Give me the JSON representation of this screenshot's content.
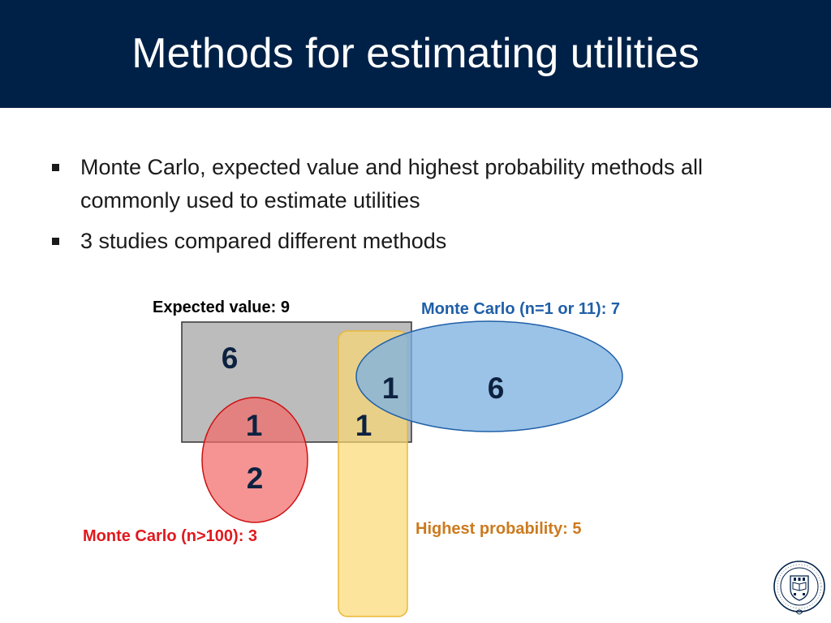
{
  "slide": {
    "title": "Methods for estimating utilities",
    "bullets": [
      "Monte Carlo, expected value and highest probability methods all commonly used to estimate utilities",
      "3 studies compared different methods"
    ]
  },
  "diagram": {
    "sets": [
      {
        "name": "expected-value",
        "label": "Expected value: 9",
        "color": "#000000",
        "fill": "#b3b3b3"
      },
      {
        "name": "monte-carlo-small",
        "label": "Monte Carlo (n=1 or 11): 7",
        "color": "#1f5fa8",
        "fill": "#7fb2e0"
      },
      {
        "name": "monte-carlo-large",
        "label": "Monte Carlo (n>100): 3",
        "color": "#e0191e",
        "fill": "#f26b6b"
      },
      {
        "name": "highest-probability",
        "label": "Highest probability: 5",
        "color": "#cc7a1e",
        "fill": "#fcd872"
      }
    ],
    "region_counts": {
      "expected_only": "6",
      "expected_and_mc_small_and_highest": "1",
      "mc_small_only": "6",
      "expected_and_mc_large": "1",
      "expected_and_highest": "1",
      "mc_large_only": "2"
    }
  },
  "logo": {
    "icon": "oxford-university-seal-icon",
    "color": "#002147"
  }
}
